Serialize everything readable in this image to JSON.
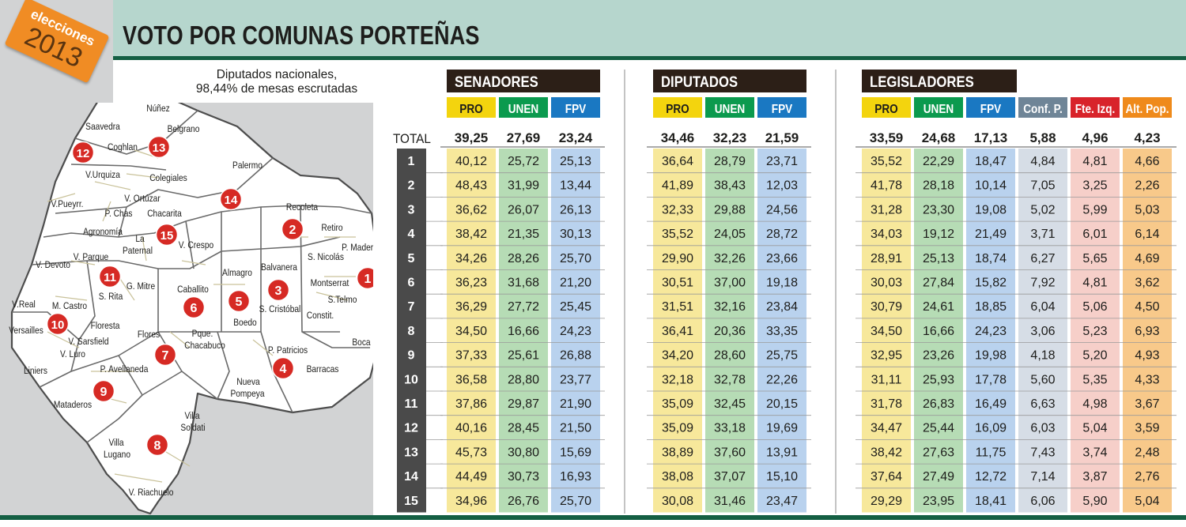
{
  "header": {
    "logo_word": "elecciones",
    "logo_year": "2013",
    "title": "VOTO POR COMUNAS PORTEÑAS"
  },
  "subtitle": {
    "line1": "Diputados nacionales,",
    "line2": "98,44% de mesas escrutadas"
  },
  "colors": {
    "PRO": "#f7e89b",
    "UNEN": "#b6dcb5",
    "FPV": "#b9d2ee",
    "Conf": "#d6dde6",
    "Fte": "#f6cfc9",
    "Alt": "#f8c98a",
    "PRO_hdr": "#f3d40e",
    "UNEN_hdr": "#0b9a4e",
    "FPV_hdr": "#1a78c2",
    "Conf_hdr": "#6f8597",
    "Fte_hdr": "#d8232a",
    "Alt_hdr": "#ef8a1b",
    "section_hdr": "#2c1f17",
    "row_num": "#4a4a4a",
    "marker": "#d62a24"
  },
  "map": {
    "markers": [
      "1",
      "2",
      "3",
      "4",
      "5",
      "6",
      "7",
      "8",
      "9",
      "10",
      "11",
      "12",
      "13",
      "14",
      "15"
    ],
    "labels": [
      "Núñez",
      "Saavedra",
      "Belgrano",
      "Coghlan",
      "V.Urquiza",
      "Colegiales",
      "Palermo",
      "V. Ortúzar",
      "V.Pueyrr.",
      "P. Chas",
      "Chacarita",
      "Recoleta",
      "Agronomía",
      "La Paternal",
      "Retiro",
      "P. Madero",
      "V. Crespo",
      "V. Parque",
      "S. Nicolás",
      "V. Devoto",
      "Almagro",
      "Balvanera",
      "Caballito",
      "Montserrat",
      "G. Mitre",
      "S. Rita",
      "S.Telmo",
      "S. Cristóbal",
      "V.Real",
      "M. Castro",
      "Constit.",
      "Floresta",
      "Versailles",
      "Boedo",
      "Flores",
      "Pque. Chacabuco",
      "V. Sarsfield",
      "V. Luro",
      "P. Patricios",
      "Boca",
      "Liniers",
      "Barracas",
      "P. Avellaneda",
      "Nueva Pompeya",
      "Mataderos",
      "Villa Soldati",
      "Villa Lugano",
      "V. Riachuelo"
    ]
  },
  "chart_data": {
    "type": "table",
    "total_label": "TOTAL",
    "rows": [
      "1",
      "2",
      "3",
      "4",
      "5",
      "6",
      "7",
      "8",
      "9",
      "10",
      "11",
      "12",
      "13",
      "14",
      "15"
    ],
    "sections": [
      {
        "title": "SENADORES",
        "columns": [
          "PRO",
          "UNEN",
          "FPV"
        ],
        "total": [
          "39,25",
          "27,69",
          "23,24"
        ],
        "values": [
          [
            "40,12",
            "25,72",
            "25,13"
          ],
          [
            "48,43",
            "31,99",
            "13,44"
          ],
          [
            "36,62",
            "26,07",
            "26,13"
          ],
          [
            "38,42",
            "21,35",
            "30,13"
          ],
          [
            "34,26",
            "28,26",
            "25,70"
          ],
          [
            "36,23",
            "31,68",
            "21,20"
          ],
          [
            "36,29",
            "27,72",
            "25,45"
          ],
          [
            "34,50",
            "16,66",
            "24,23"
          ],
          [
            "37,33",
            "25,61",
            "26,88"
          ],
          [
            "36,58",
            "28,80",
            "23,77"
          ],
          [
            "37,86",
            "29,87",
            "21,90"
          ],
          [
            "40,16",
            "28,45",
            "21,50"
          ],
          [
            "45,73",
            "30,80",
            "15,69"
          ],
          [
            "44,49",
            "30,73",
            "16,93"
          ],
          [
            "34,96",
            "26,76",
            "25,70"
          ]
        ]
      },
      {
        "title": "DIPUTADOS",
        "columns": [
          "PRO",
          "UNEN",
          "FPV"
        ],
        "total": [
          "34,46",
          "32,23",
          "21,59"
        ],
        "values": [
          [
            "36,64",
            "28,79",
            "23,71"
          ],
          [
            "41,89",
            "38,43",
            "12,03"
          ],
          [
            "32,33",
            "29,88",
            "24,56"
          ],
          [
            "35,52",
            "24,05",
            "28,72"
          ],
          [
            "29,90",
            "32,26",
            "23,66"
          ],
          [
            "30,51",
            "37,00",
            "19,18"
          ],
          [
            "31,51",
            "32,16",
            "23,84"
          ],
          [
            "36,41",
            "20,36",
            "33,35"
          ],
          [
            "34,20",
            "28,60",
            "25,75"
          ],
          [
            "32,18",
            "32,78",
            "22,26"
          ],
          [
            "35,09",
            "32,45",
            "20,15"
          ],
          [
            "35,09",
            "33,18",
            "19,69"
          ],
          [
            "38,89",
            "37,60",
            "13,91"
          ],
          [
            "38,08",
            "37,07",
            "15,10"
          ],
          [
            "30,08",
            "31,46",
            "23,47"
          ]
        ]
      },
      {
        "title": "LEGISLADORES",
        "columns": [
          "PRO",
          "UNEN",
          "FPV",
          "Conf. P.",
          "Fte. Izq.",
          "Alt. Pop."
        ],
        "total": [
          "33,59",
          "24,68",
          "17,13",
          "5,88",
          "4,96",
          "4,23"
        ],
        "values": [
          [
            "35,52",
            "22,29",
            "18,47",
            "4,84",
            "4,81",
            "4,66"
          ],
          [
            "41,78",
            "28,18",
            "10,14",
            "7,05",
            "3,25",
            "2,26"
          ],
          [
            "31,28",
            "23,30",
            "19,08",
            "5,02",
            "5,99",
            "5,03"
          ],
          [
            "34,03",
            "19,12",
            "21,49",
            "3,71",
            "6,01",
            "6,14"
          ],
          [
            "28,91",
            "25,13",
            "18,74",
            "6,27",
            "5,65",
            "4,69"
          ],
          [
            "30,03",
            "27,84",
            "15,82",
            "7,92",
            "4,81",
            "3,62"
          ],
          [
            "30,79",
            "24,61",
            "18,85",
            "6,04",
            "5,06",
            "4,50"
          ],
          [
            "34,50",
            "16,66",
            "24,23",
            "3,06",
            "5,23",
            "6,93"
          ],
          [
            "32,95",
            "23,26",
            "19,98",
            "4,18",
            "5,20",
            "4,93"
          ],
          [
            "31,11",
            "25,93",
            "17,78",
            "5,60",
            "5,35",
            "4,33"
          ],
          [
            "31,78",
            "26,83",
            "16,49",
            "6,63",
            "4,98",
            "3,67"
          ],
          [
            "34,47",
            "25,44",
            "16,09",
            "6,03",
            "5,04",
            "3,59"
          ],
          [
            "38,42",
            "27,63",
            "11,75",
            "7,43",
            "3,74",
            "2,48"
          ],
          [
            "37,64",
            "27,49",
            "12,72",
            "7,14",
            "3,87",
            "2,76"
          ],
          [
            "29,29",
            "23,95",
            "18,41",
            "6,06",
            "5,90",
            "5,04"
          ]
        ]
      }
    ]
  }
}
